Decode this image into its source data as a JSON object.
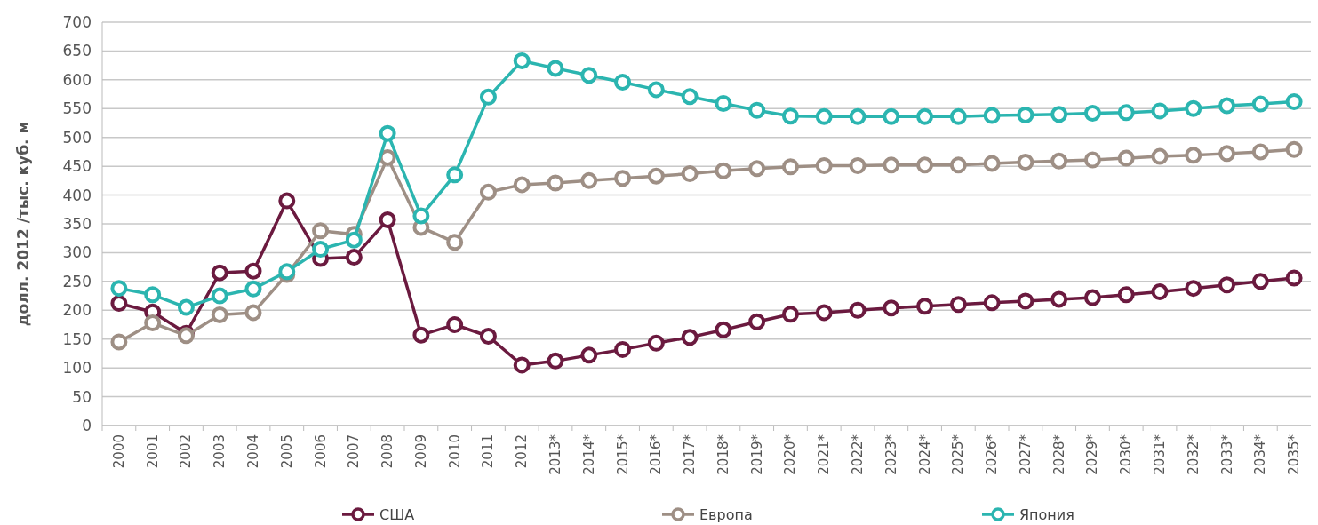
{
  "chart_data": {
    "type": "line",
    "ylabel": "долл. 2012 /тыс. куб. м",
    "categories": [
      "2000",
      "2001",
      "2002",
      "2003",
      "2004",
      "2005",
      "2006",
      "2007",
      "2008",
      "2009",
      "2010",
      "2011",
      "2012",
      "2013*",
      "2014*",
      "2015*",
      "2016*",
      "2017*",
      "2018*",
      "2019*",
      "2020*",
      "2021*",
      "2022*",
      "2023*",
      "2024*",
      "2025*",
      "2026*",
      "2027*",
      "2028*",
      "2029*",
      "2030*",
      "2031*",
      "2032*",
      "2033*",
      "2034*",
      "2035*"
    ],
    "series": [
      {
        "name": "США",
        "color": "#6b1a3f",
        "values": [
          212,
          197,
          160,
          265,
          268,
          390,
          290,
          292,
          357,
          157,
          175,
          155,
          105,
          112,
          122,
          132,
          143,
          153,
          166,
          180,
          193,
          196,
          200,
          204,
          207,
          210,
          213,
          216,
          219,
          222,
          227,
          232,
          238,
          244,
          250,
          256
        ]
      },
      {
        "name": "Европа",
        "color": "#9e8f85",
        "values": [
          145,
          178,
          156,
          192,
          196,
          262,
          338,
          332,
          465,
          344,
          318,
          405,
          418,
          421,
          425,
          429,
          433,
          437,
          442,
          446,
          449,
          451,
          451,
          452,
          452,
          452,
          455,
          457,
          459,
          461,
          464,
          467,
          469,
          472,
          475,
          479
        ]
      },
      {
        "name": "Япония",
        "color": "#2bb5b0",
        "values": [
          238,
          227,
          205,
          225,
          237,
          267,
          306,
          322,
          507,
          364,
          435,
          570,
          633,
          620,
          608,
          596,
          583,
          571,
          559,
          547,
          537,
          536,
          536,
          536,
          536,
          536,
          538,
          539,
          540,
          542,
          543,
          546,
          550,
          555,
          558,
          562
        ]
      }
    ],
    "ylim": [
      0,
      700
    ],
    "yticks": [
      0,
      50,
      100,
      150,
      200,
      250,
      300,
      350,
      400,
      450,
      500,
      550,
      600,
      650,
      700
    ],
    "grid": "y",
    "legend": "bottom",
    "marker": "circle",
    "line_style": "solid"
  }
}
